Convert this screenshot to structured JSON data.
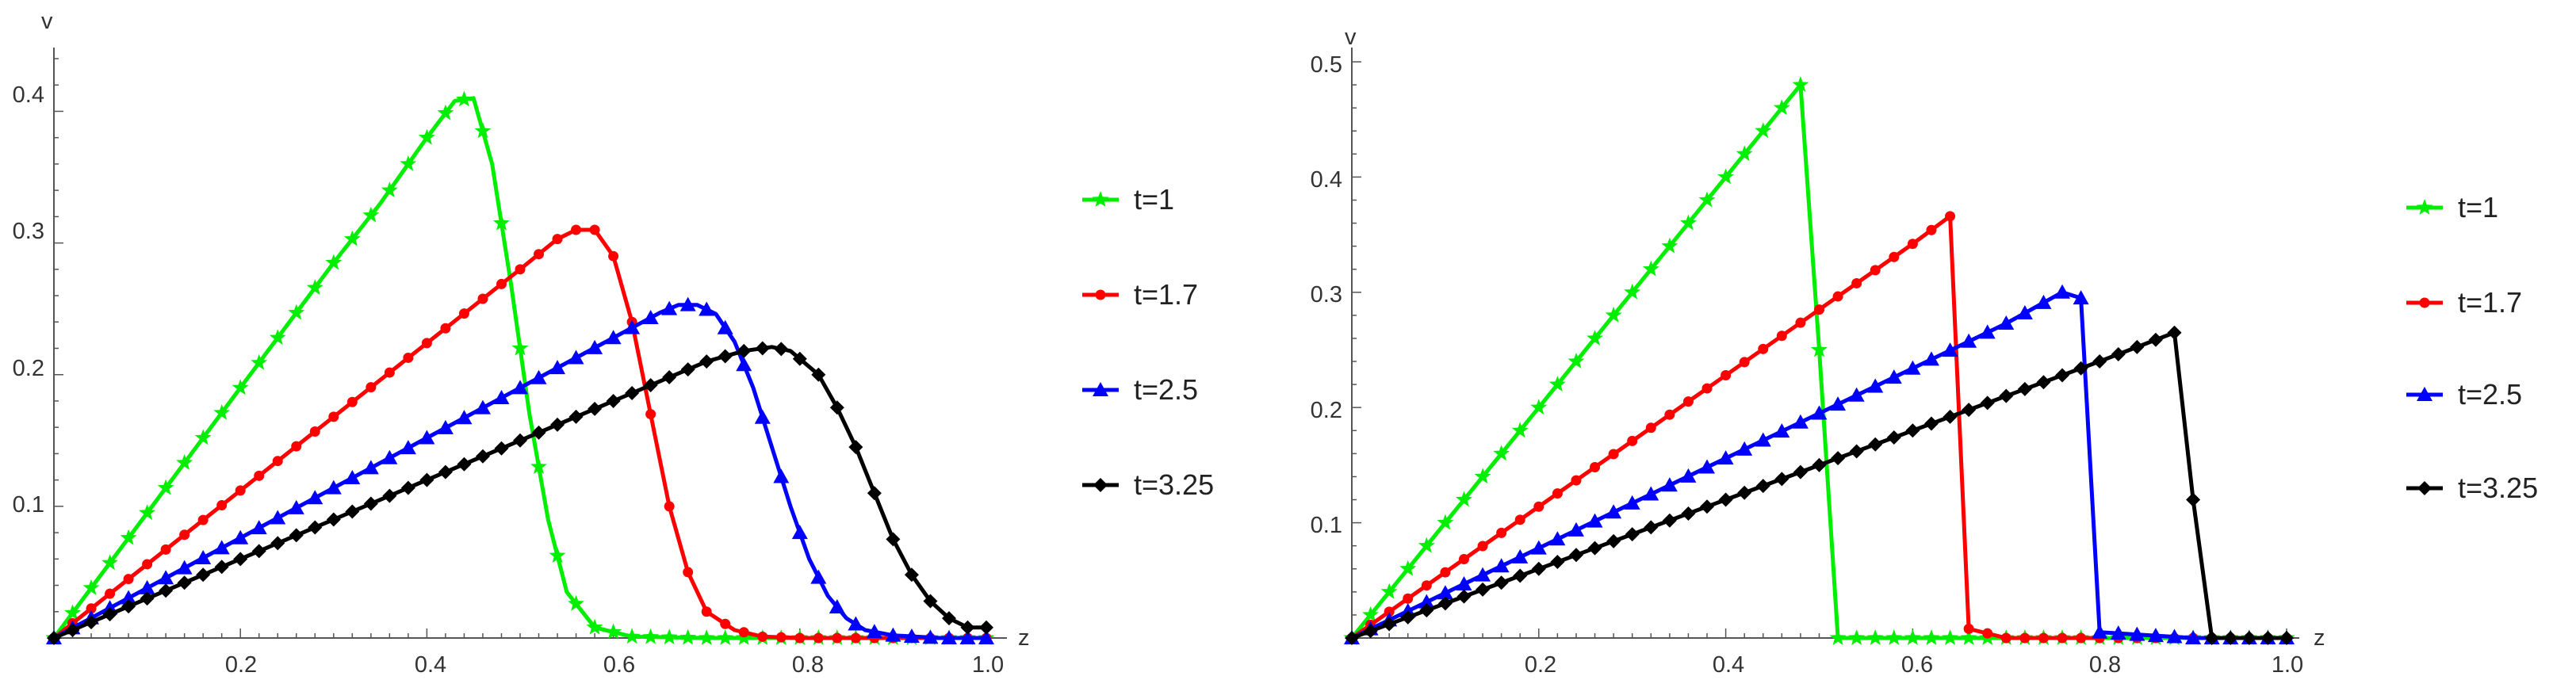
{
  "chart_data": [
    {
      "type": "line",
      "title": "",
      "xlabel": "z",
      "ylabel": "v",
      "xlim": [
        0,
        1.0
      ],
      "ylim": [
        0,
        0.44
      ],
      "xticks": [
        0.2,
        0.4,
        0.6,
        0.8,
        1.0
      ],
      "xtick_labels": [
        "0.2",
        "0.4",
        "0.6",
        "0.8",
        "1.0"
      ],
      "yticks": [
        0.1,
        0.2,
        0.3,
        0.4
      ],
      "ytick_labels": [
        "0.1",
        "0.2",
        "0.3",
        "0.4"
      ],
      "legend_position": "right",
      "series": [
        {
          "name": "t=1",
          "color": "#00ee00",
          "marker": "star",
          "x": [
            0,
            0.1,
            0.2,
            0.3,
            0.35,
            0.4,
            0.43,
            0.45,
            0.47,
            0.49,
            0.51,
            0.53,
            0.55,
            0.58,
            0.62,
            0.7,
            0.8,
            0.9,
            1.0
          ],
          "y": [
            0,
            0.095,
            0.19,
            0.285,
            0.33,
            0.38,
            0.408,
            0.41,
            0.36,
            0.27,
            0.17,
            0.09,
            0.035,
            0.008,
            0.001,
            0,
            0,
            0,
            0
          ]
        },
        {
          "name": "t=1.7",
          "color": "#ff0000",
          "marker": "circle",
          "x": [
            0,
            0.1,
            0.2,
            0.3,
            0.4,
            0.45,
            0.5,
            0.54,
            0.56,
            0.58,
            0.6,
            0.62,
            0.64,
            0.66,
            0.68,
            0.7,
            0.73,
            0.76,
            0.8,
            0.9,
            1.0
          ],
          "y": [
            0,
            0.056,
            0.112,
            0.168,
            0.224,
            0.252,
            0.28,
            0.303,
            0.31,
            0.31,
            0.29,
            0.24,
            0.17,
            0.1,
            0.05,
            0.02,
            0.006,
            0.001,
            0,
            0,
            0
          ]
        },
        {
          "name": "t=2.5",
          "color": "#0000ff",
          "marker": "triangle",
          "x": [
            0,
            0.1,
            0.2,
            0.3,
            0.4,
            0.5,
            0.6,
            0.65,
            0.67,
            0.69,
            0.71,
            0.73,
            0.75,
            0.77,
            0.79,
            0.81,
            0.83,
            0.85,
            0.87,
            0.9,
            0.95,
            1.0
          ],
          "y": [
            0,
            0.038,
            0.076,
            0.114,
            0.152,
            0.19,
            0.228,
            0.247,
            0.253,
            0.253,
            0.246,
            0.225,
            0.19,
            0.145,
            0.1,
            0.06,
            0.032,
            0.015,
            0.006,
            0.002,
            0,
            0
          ]
        },
        {
          "name": "t=3.25",
          "color": "#000000",
          "marker": "diamond",
          "x": [
            0,
            0.1,
            0.2,
            0.3,
            0.4,
            0.5,
            0.6,
            0.7,
            0.74,
            0.77,
            0.79,
            0.82,
            0.84,
            0.86,
            0.88,
            0.9,
            0.92,
            0.94,
            0.96,
            0.98,
            1.0
          ],
          "y": [
            0,
            0.03,
            0.06,
            0.09,
            0.12,
            0.15,
            0.18,
            0.21,
            0.218,
            0.221,
            0.218,
            0.2,
            0.175,
            0.145,
            0.11,
            0.075,
            0.048,
            0.028,
            0.015,
            0.008,
            0.008
          ]
        }
      ]
    },
    {
      "type": "line",
      "title": "",
      "xlabel": "z",
      "ylabel": "v",
      "xlim": [
        0,
        1.0
      ],
      "ylim": [
        0,
        0.5
      ],
      "xticks": [
        0.2,
        0.4,
        0.6,
        0.8,
        1.0
      ],
      "xtick_labels": [
        "0.2",
        "0.4",
        "0.6",
        "0.8",
        "1.0"
      ],
      "yticks": [
        0.1,
        0.2,
        0.3,
        0.4,
        0.5
      ],
      "ytick_labels": [
        "0.1",
        "0.2",
        "0.3",
        "0.4",
        "0.5"
      ],
      "legend_position": "right",
      "series": [
        {
          "name": "t=1",
          "color": "#00ee00",
          "marker": "star",
          "x": [
            0,
            0.1,
            0.2,
            0.3,
            0.4,
            0.48,
            0.5,
            0.52,
            0.6,
            0.7,
            0.8,
            0.9,
            1.0
          ],
          "y": [
            0,
            0.1,
            0.2,
            0.3,
            0.4,
            0.48,
            0.25,
            0,
            0,
            0,
            0,
            0,
            0
          ]
        },
        {
          "name": "t=1.7",
          "color": "#ff0000",
          "marker": "circle",
          "x": [
            0,
            0.1,
            0.2,
            0.3,
            0.4,
            0.5,
            0.6,
            0.64,
            0.66,
            0.7,
            0.8
          ],
          "y": [
            0,
            0.057,
            0.114,
            0.171,
            0.228,
            0.285,
            0.342,
            0.366,
            0.008,
            0,
            0
          ]
        },
        {
          "name": "t=2.5",
          "color": "#0000ff",
          "marker": "triangle",
          "x": [
            0,
            0.1,
            0.2,
            0.3,
            0.4,
            0.5,
            0.6,
            0.7,
            0.76,
            0.78,
            0.8,
            0.9,
            1.0
          ],
          "y": [
            0,
            0.039,
            0.078,
            0.117,
            0.156,
            0.195,
            0.234,
            0.273,
            0.3,
            0.295,
            0.005,
            0,
            0
          ]
        },
        {
          "name": "t=3.25",
          "color": "#000000",
          "marker": "diamond",
          "x": [
            0,
            0.1,
            0.2,
            0.3,
            0.4,
            0.5,
            0.6,
            0.7,
            0.8,
            0.88,
            0.9,
            0.92,
            1.0
          ],
          "y": [
            0,
            0.03,
            0.06,
            0.09,
            0.12,
            0.15,
            0.18,
            0.21,
            0.24,
            0.265,
            0.12,
            0,
            0
          ]
        }
      ]
    }
  ]
}
